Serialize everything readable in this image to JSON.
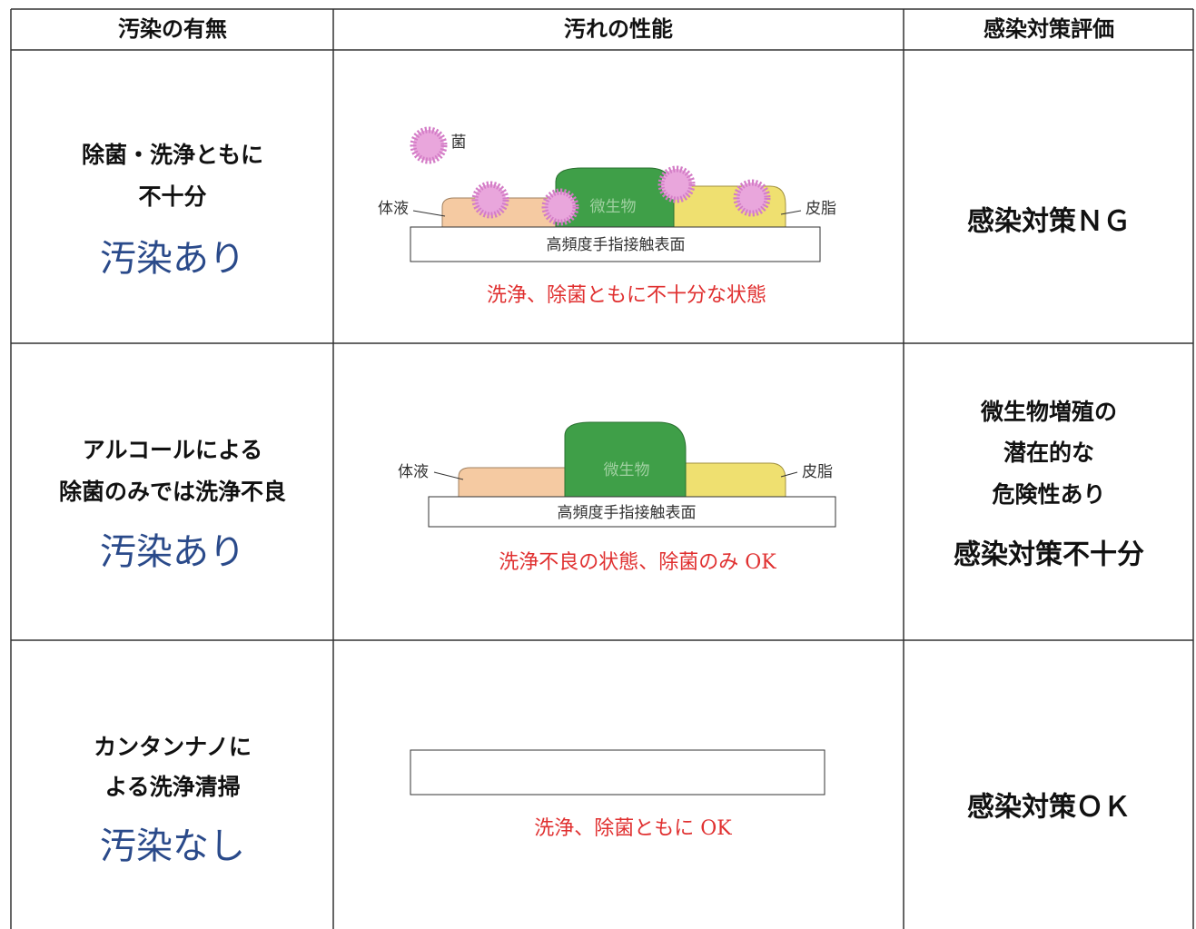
{
  "header": {
    "columns": [
      "汚染の有無",
      "汚れの性能",
      "感染対策評価"
    ]
  },
  "rows": [
    {
      "status": {
        "lines": [
          "除菌・洗浄ともに",
          "不十分"
        ],
        "verdict": "汚染あり"
      },
      "diagram": {
        "germ": "菌",
        "body_fluid": "体液",
        "microbe": "微生物",
        "sebum": "皮脂",
        "surface": "高頻度手指接触表面",
        "caption": "洗浄、除菌ともに不十分な状態"
      },
      "evaluation": {
        "verdict": "感染対策ＮＧ"
      }
    },
    {
      "status": {
        "lines": [
          "アルコールによる",
          "除菌のみでは洗浄不良"
        ],
        "verdict": "汚染あり"
      },
      "diagram": {
        "body_fluid": "体液",
        "microbe": "微生物",
        "sebum": "皮脂",
        "surface": "高頻度手指接触表面",
        "caption": "洗浄不良の状態、除菌のみ OK"
      },
      "evaluation": {
        "lines": [
          "微生物増殖の",
          "潜在的な",
          "危険性あり"
        ],
        "verdict": "感染対策不十分"
      }
    },
    {
      "status": {
        "lines": [
          "カンタンナノに",
          "よる洗浄清掃"
        ],
        "verdict": "汚染なし"
      },
      "diagram": {
        "caption": "洗浄、除菌ともに OK"
      },
      "evaluation": {
        "verdict": "感染対策ＯＫ"
      }
    }
  ]
}
